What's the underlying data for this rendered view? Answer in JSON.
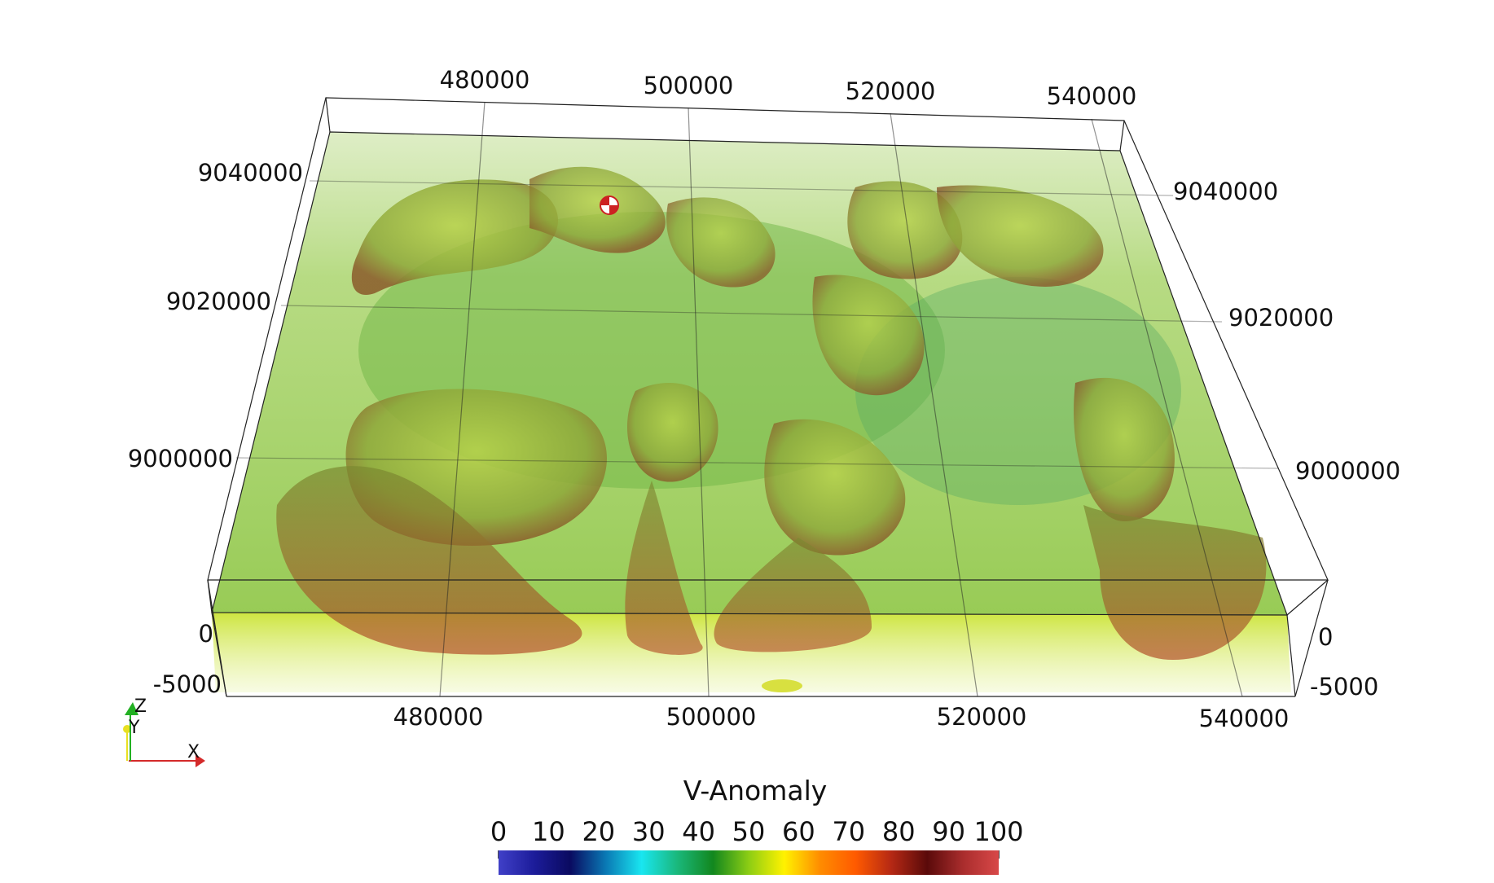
{
  "axes": {
    "x_top_ticks": [
      "480000",
      "500000",
      "520000",
      "540000"
    ],
    "x_bottom_ticks": [
      "480000",
      "500000",
      "520000",
      "540000"
    ],
    "y_left_ticks": [
      "9040000",
      "9020000",
      "9000000"
    ],
    "y_right_ticks": [
      "9040000",
      "9020000",
      "9000000"
    ],
    "z_left_ticks": [
      "0",
      "-5000"
    ],
    "z_right_ticks": [
      "0",
      "-5000"
    ]
  },
  "orientation": {
    "x_label": "X",
    "y_label": "Y",
    "z_label": "Z",
    "x_color": "#d42a2a",
    "y_color": "#e8e020",
    "z_color": "#22b022"
  },
  "colorbar": {
    "title": "V-Anomaly",
    "ticks": [
      "0",
      "10",
      "20",
      "30",
      "40",
      "50",
      "60",
      "70",
      "80",
      "90",
      "100"
    ],
    "range": [
      0,
      100
    ],
    "colors": [
      "#4040c8",
      "#1c1c9a",
      "#0a0a60",
      "#0a78b4",
      "#19e6f0",
      "#1ab87c",
      "#12871e",
      "#8ccd14",
      "#fff200",
      "#ff8c00",
      "#ff5a00",
      "#b42814",
      "#5a0a0a",
      "#aa2d2d",
      "#d84848"
    ]
  },
  "scene": {
    "volume_color": "#8cc63f",
    "surface_color": "#a07832",
    "marker_icon": "sphere-marker-icon"
  }
}
